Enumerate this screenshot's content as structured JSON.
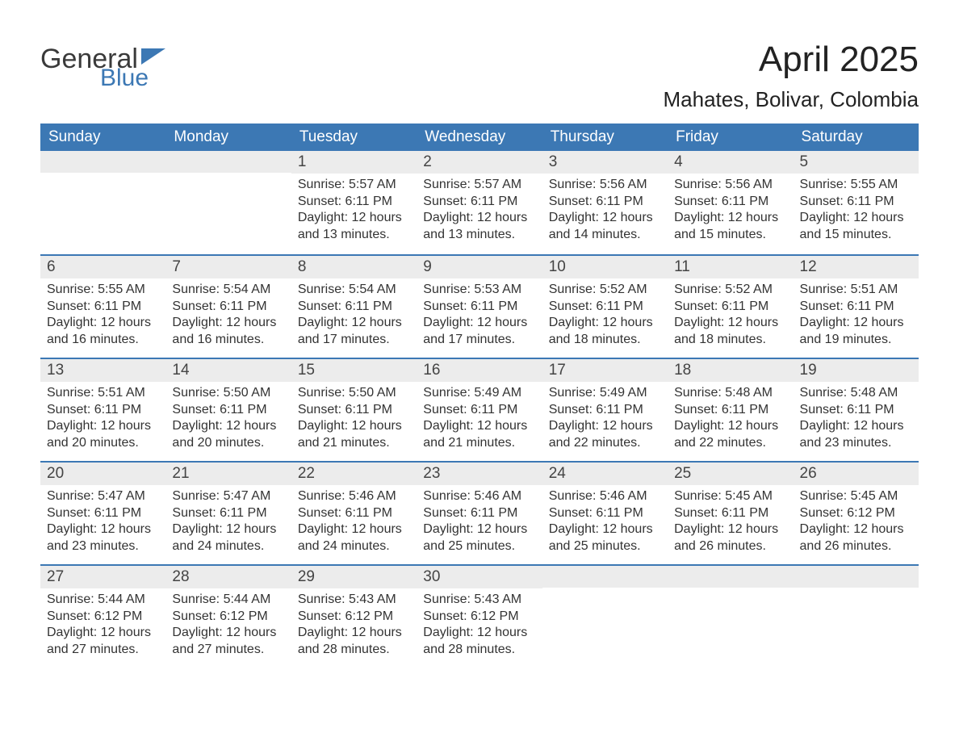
{
  "logo": {
    "word1": "General",
    "word2": "Blue",
    "flag_color": "#3c78b4",
    "text_color_dark": "#3a3a3a"
  },
  "title": "April 2025",
  "location": "Mahates, Bolivar, Colombia",
  "colors": {
    "header_bg": "#3c78b4",
    "header_text": "#ffffff",
    "band_bg": "#ececec",
    "week_border": "#3c78b4",
    "body_text": "#333333"
  },
  "fonts": {
    "title_size_pt": 33,
    "location_size_pt": 20,
    "dow_size_pt": 14,
    "daynum_size_pt": 14,
    "content_size_pt": 12
  },
  "days_of_week": [
    "Sunday",
    "Monday",
    "Tuesday",
    "Wednesday",
    "Thursday",
    "Friday",
    "Saturday"
  ],
  "weeks": [
    [
      {
        "n": "",
        "sunrise": "",
        "sunset": "",
        "daylight": ""
      },
      {
        "n": "",
        "sunrise": "",
        "sunset": "",
        "daylight": ""
      },
      {
        "n": "1",
        "sunrise": "Sunrise: 5:57 AM",
        "sunset": "Sunset: 6:11 PM",
        "daylight": "Daylight: 12 hours and 13 minutes."
      },
      {
        "n": "2",
        "sunrise": "Sunrise: 5:57 AM",
        "sunset": "Sunset: 6:11 PM",
        "daylight": "Daylight: 12 hours and 13 minutes."
      },
      {
        "n": "3",
        "sunrise": "Sunrise: 5:56 AM",
        "sunset": "Sunset: 6:11 PM",
        "daylight": "Daylight: 12 hours and 14 minutes."
      },
      {
        "n": "4",
        "sunrise": "Sunrise: 5:56 AM",
        "sunset": "Sunset: 6:11 PM",
        "daylight": "Daylight: 12 hours and 15 minutes."
      },
      {
        "n": "5",
        "sunrise": "Sunrise: 5:55 AM",
        "sunset": "Sunset: 6:11 PM",
        "daylight": "Daylight: 12 hours and 15 minutes."
      }
    ],
    [
      {
        "n": "6",
        "sunrise": "Sunrise: 5:55 AM",
        "sunset": "Sunset: 6:11 PM",
        "daylight": "Daylight: 12 hours and 16 minutes."
      },
      {
        "n": "7",
        "sunrise": "Sunrise: 5:54 AM",
        "sunset": "Sunset: 6:11 PM",
        "daylight": "Daylight: 12 hours and 16 minutes."
      },
      {
        "n": "8",
        "sunrise": "Sunrise: 5:54 AM",
        "sunset": "Sunset: 6:11 PM",
        "daylight": "Daylight: 12 hours and 17 minutes."
      },
      {
        "n": "9",
        "sunrise": "Sunrise: 5:53 AM",
        "sunset": "Sunset: 6:11 PM",
        "daylight": "Daylight: 12 hours and 17 minutes."
      },
      {
        "n": "10",
        "sunrise": "Sunrise: 5:52 AM",
        "sunset": "Sunset: 6:11 PM",
        "daylight": "Daylight: 12 hours and 18 minutes."
      },
      {
        "n": "11",
        "sunrise": "Sunrise: 5:52 AM",
        "sunset": "Sunset: 6:11 PM",
        "daylight": "Daylight: 12 hours and 18 minutes."
      },
      {
        "n": "12",
        "sunrise": "Sunrise: 5:51 AM",
        "sunset": "Sunset: 6:11 PM",
        "daylight": "Daylight: 12 hours and 19 minutes."
      }
    ],
    [
      {
        "n": "13",
        "sunrise": "Sunrise: 5:51 AM",
        "sunset": "Sunset: 6:11 PM",
        "daylight": "Daylight: 12 hours and 20 minutes."
      },
      {
        "n": "14",
        "sunrise": "Sunrise: 5:50 AM",
        "sunset": "Sunset: 6:11 PM",
        "daylight": "Daylight: 12 hours and 20 minutes."
      },
      {
        "n": "15",
        "sunrise": "Sunrise: 5:50 AM",
        "sunset": "Sunset: 6:11 PM",
        "daylight": "Daylight: 12 hours and 21 minutes."
      },
      {
        "n": "16",
        "sunrise": "Sunrise: 5:49 AM",
        "sunset": "Sunset: 6:11 PM",
        "daylight": "Daylight: 12 hours and 21 minutes."
      },
      {
        "n": "17",
        "sunrise": "Sunrise: 5:49 AM",
        "sunset": "Sunset: 6:11 PM",
        "daylight": "Daylight: 12 hours and 22 minutes."
      },
      {
        "n": "18",
        "sunrise": "Sunrise: 5:48 AM",
        "sunset": "Sunset: 6:11 PM",
        "daylight": "Daylight: 12 hours and 22 minutes."
      },
      {
        "n": "19",
        "sunrise": "Sunrise: 5:48 AM",
        "sunset": "Sunset: 6:11 PM",
        "daylight": "Daylight: 12 hours and 23 minutes."
      }
    ],
    [
      {
        "n": "20",
        "sunrise": "Sunrise: 5:47 AM",
        "sunset": "Sunset: 6:11 PM",
        "daylight": "Daylight: 12 hours and 23 minutes."
      },
      {
        "n": "21",
        "sunrise": "Sunrise: 5:47 AM",
        "sunset": "Sunset: 6:11 PM",
        "daylight": "Daylight: 12 hours and 24 minutes."
      },
      {
        "n": "22",
        "sunrise": "Sunrise: 5:46 AM",
        "sunset": "Sunset: 6:11 PM",
        "daylight": "Daylight: 12 hours and 24 minutes."
      },
      {
        "n": "23",
        "sunrise": "Sunrise: 5:46 AM",
        "sunset": "Sunset: 6:11 PM",
        "daylight": "Daylight: 12 hours and 25 minutes."
      },
      {
        "n": "24",
        "sunrise": "Sunrise: 5:46 AM",
        "sunset": "Sunset: 6:11 PM",
        "daylight": "Daylight: 12 hours and 25 minutes."
      },
      {
        "n": "25",
        "sunrise": "Sunrise: 5:45 AM",
        "sunset": "Sunset: 6:11 PM",
        "daylight": "Daylight: 12 hours and 26 minutes."
      },
      {
        "n": "26",
        "sunrise": "Sunrise: 5:45 AM",
        "sunset": "Sunset: 6:12 PM",
        "daylight": "Daylight: 12 hours and 26 minutes."
      }
    ],
    [
      {
        "n": "27",
        "sunrise": "Sunrise: 5:44 AM",
        "sunset": "Sunset: 6:12 PM",
        "daylight": "Daylight: 12 hours and 27 minutes."
      },
      {
        "n": "28",
        "sunrise": "Sunrise: 5:44 AM",
        "sunset": "Sunset: 6:12 PM",
        "daylight": "Daylight: 12 hours and 27 minutes."
      },
      {
        "n": "29",
        "sunrise": "Sunrise: 5:43 AM",
        "sunset": "Sunset: 6:12 PM",
        "daylight": "Daylight: 12 hours and 28 minutes."
      },
      {
        "n": "30",
        "sunrise": "Sunrise: 5:43 AM",
        "sunset": "Sunset: 6:12 PM",
        "daylight": "Daylight: 12 hours and 28 minutes."
      },
      {
        "n": "",
        "sunrise": "",
        "sunset": "",
        "daylight": ""
      },
      {
        "n": "",
        "sunrise": "",
        "sunset": "",
        "daylight": ""
      },
      {
        "n": "",
        "sunrise": "",
        "sunset": "",
        "daylight": ""
      }
    ]
  ]
}
